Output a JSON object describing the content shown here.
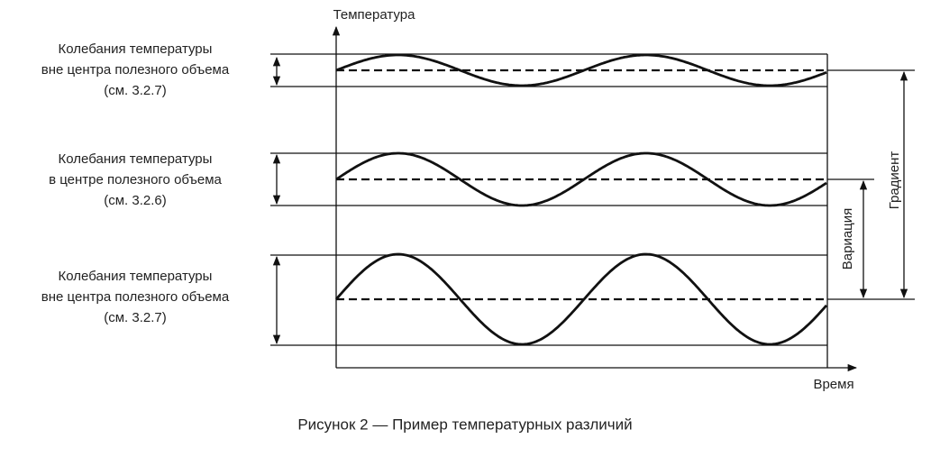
{
  "axes": {
    "y_label": "Температура",
    "x_label": "Время"
  },
  "bands": [
    {
      "lines": [
        "Колебания температуры",
        "вне центра полезного объема",
        "(см. 3.2.7)"
      ]
    },
    {
      "lines": [
        "Колебания температуры",
        "в центре полезного объема",
        "(см. 3.2.6)"
      ]
    },
    {
      "lines": [
        "Колебания температуры",
        "вне центра полезного объема",
        "(см. 3.2.7)"
      ]
    }
  ],
  "variation_label": "Вариация",
  "gradient_label": "Градиент",
  "caption": "Рисунок 2 — Пример температурных различий"
}
